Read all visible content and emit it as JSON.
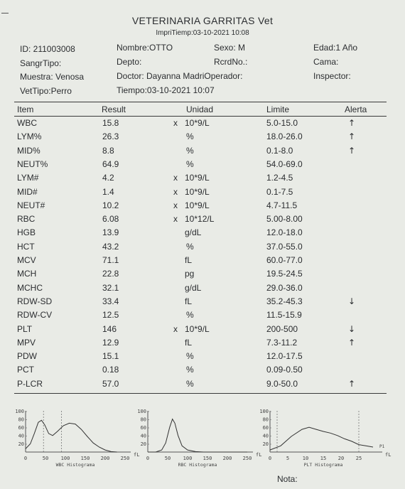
{
  "header": {
    "title": "VETERINARIA GARRITAS  Vet",
    "print_time": "ImpriTiemp:03-10-2021  10:08"
  },
  "info": {
    "id": "ID: 211003008",
    "nombre": "Nombre:OTTO",
    "sexo": "Sexo: M",
    "edad": "Edad:1 Año",
    "sangr_tipo": "SangrTipo:",
    "depto": "Depto:",
    "rcrd_no": "RcrdNo.:",
    "cama": "Cama:",
    "muestra": "Muestra: Venosa",
    "doctor": "Doctor: Dayanna MadriOperador:",
    "inspector": "Inspector:",
    "vet_tipo": "VetTipo:Perro",
    "tiempo": "Tiempo:03-10-2021 10:07"
  },
  "table": {
    "headers": [
      "Item",
      "Result",
      "Unidad",
      "Limite",
      "Alerta"
    ],
    "rows": [
      {
        "item": "WBC",
        "result": "15.8",
        "x": "x",
        "unit": "10*9/L",
        "limit": "5.0-15.0",
        "alert": "↑"
      },
      {
        "item": "LYM%",
        "result": "26.3",
        "x": "",
        "unit": "%",
        "limit": "18.0-26.0",
        "alert": "↑"
      },
      {
        "item": "MID%",
        "result": "8.8",
        "x": "",
        "unit": "%",
        "limit": "0.1-8.0",
        "alert": "↑"
      },
      {
        "item": "NEUT%",
        "result": "64.9",
        "x": "",
        "unit": "%",
        "limit": "54.0-69.0",
        "alert": ""
      },
      {
        "item": "LYM#",
        "result": "4.2",
        "x": "x",
        "unit": "10*9/L",
        "limit": "1.2-4.5",
        "alert": ""
      },
      {
        "item": "MID#",
        "result": "1.4",
        "x": "x",
        "unit": "10*9/L",
        "limit": "0.1-7.5",
        "alert": ""
      },
      {
        "item": "NEUT#",
        "result": "10.2",
        "x": "x",
        "unit": "10*9/L",
        "limit": "4.7-11.5",
        "alert": ""
      },
      {
        "item": "RBC",
        "result": "6.08",
        "x": "x",
        "unit": "10*12/L",
        "limit": "5.00-8.00",
        "alert": ""
      },
      {
        "item": "HGB",
        "result": "13.9",
        "x": "",
        "unit": "g/dL",
        "limit": "12.0-18.0",
        "alert": ""
      },
      {
        "item": "HCT",
        "result": "43.2",
        "x": "",
        "unit": "%",
        "limit": "37.0-55.0",
        "alert": ""
      },
      {
        "item": "MCV",
        "result": "71.1",
        "x": "",
        "unit": "fL",
        "limit": "60.0-77.0",
        "alert": ""
      },
      {
        "item": "MCH",
        "result": "22.8",
        "x": "",
        "unit": "pg",
        "limit": "19.5-24.5",
        "alert": ""
      },
      {
        "item": "MCHC",
        "result": "32.1",
        "x": "",
        "unit": "g/dL",
        "limit": "29.0-36.0",
        "alert": ""
      },
      {
        "item": "RDW-SD",
        "result": "33.4",
        "x": "",
        "unit": "fL",
        "limit": "35.2-45.3",
        "alert": "↓"
      },
      {
        "item": "RDW-CV",
        "result": "12.5",
        "x": "",
        "unit": "%",
        "limit": "11.5-15.9",
        "alert": ""
      },
      {
        "item": "PLT",
        "result": "146",
        "x": "x",
        "unit": "10*9/L",
        "limit": "200-500",
        "alert": "↓"
      },
      {
        "item": "MPV",
        "result": "12.9",
        "x": "",
        "unit": "fL",
        "limit": "7.3-11.2",
        "alert": "↑"
      },
      {
        "item": "PDW",
        "result": "15.1",
        "x": "",
        "unit": "%",
        "limit": "12.0-17.5",
        "alert": ""
      },
      {
        "item": "PCT",
        "result": "0.18",
        "x": "",
        "unit": "%",
        "limit": "0.09-0.50",
        "alert": ""
      },
      {
        "item": "P-LCR",
        "result": "57.0",
        "x": "",
        "unit": "%",
        "limit": "9.0-50.0",
        "alert": "↑"
      }
    ]
  },
  "histograms": [
    {
      "name": "WBC Histograma",
      "y_ticks": [
        "100",
        "80",
        "60",
        "40",
        "20"
      ],
      "x_ticks": [
        "0",
        "50",
        "100",
        "150",
        "200",
        "250"
      ],
      "unit": "fL",
      "side_label": "",
      "curve": [
        [
          0,
          0.08
        ],
        [
          12,
          0.2
        ],
        [
          22,
          0.45
        ],
        [
          32,
          0.72
        ],
        [
          40,
          0.77
        ],
        [
          48,
          0.66
        ],
        [
          58,
          0.45
        ],
        [
          68,
          0.4
        ],
        [
          80,
          0.5
        ],
        [
          95,
          0.64
        ],
        [
          110,
          0.7
        ],
        [
          125,
          0.68
        ],
        [
          140,
          0.55
        ],
        [
          155,
          0.38
        ],
        [
          170,
          0.22
        ],
        [
          185,
          0.12
        ],
        [
          200,
          0.05
        ],
        [
          215,
          0.01
        ],
        [
          230,
          0.0
        ]
      ]
    },
    {
      "name": "RBC Histograma",
      "y_ticks": [
        "100",
        "80",
        "60",
        "40",
        "20"
      ],
      "x_ticks": [
        "0",
        "50",
        "100",
        "150",
        "200",
        "250"
      ],
      "unit": "fL",
      "side_label": "",
      "curve": [
        [
          0,
          0.0
        ],
        [
          20,
          0.0
        ],
        [
          35,
          0.05
        ],
        [
          45,
          0.22
        ],
        [
          55,
          0.6
        ],
        [
          62,
          0.8
        ],
        [
          68,
          0.7
        ],
        [
          76,
          0.4
        ],
        [
          86,
          0.15
        ],
        [
          100,
          0.05
        ],
        [
          120,
          0.01
        ],
        [
          140,
          0.0
        ],
        [
          250,
          0.0
        ]
      ]
    },
    {
      "name": "PLT Histograma",
      "y_ticks": [
        "100",
        "80",
        "60",
        "40",
        "20"
      ],
      "x_ticks": [
        "0",
        "5",
        "10",
        "15",
        "20",
        "25"
      ],
      "unit": "fL",
      "side_label": "P1",
      "curve": [
        [
          0,
          0.05
        ],
        [
          3,
          0.15
        ],
        [
          6,
          0.38
        ],
        [
          9,
          0.55
        ],
        [
          11,
          0.6
        ],
        [
          13,
          0.55
        ],
        [
          15,
          0.5
        ],
        [
          17,
          0.46
        ],
        [
          19,
          0.4
        ],
        [
          21,
          0.32
        ],
        [
          23,
          0.26
        ],
        [
          25,
          0.18
        ],
        [
          27,
          0.15
        ],
        [
          29,
          0.12
        ]
      ]
    }
  ],
  "footer": {
    "nota": "Nota:"
  }
}
